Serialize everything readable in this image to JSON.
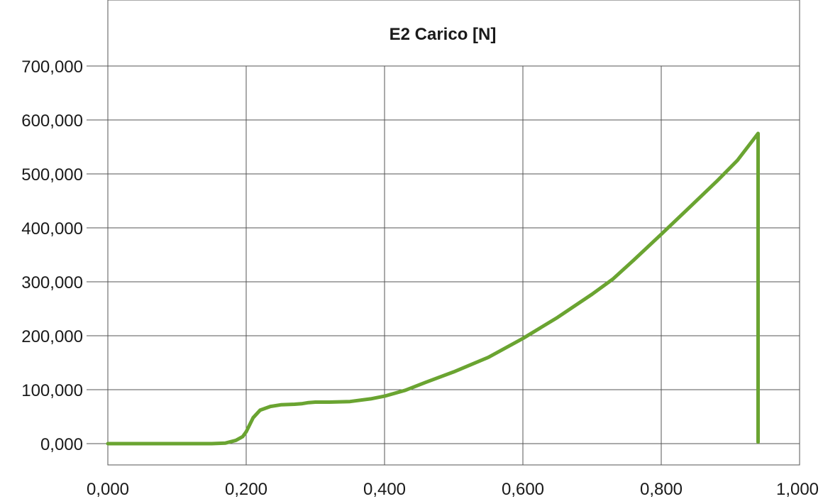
{
  "chart_data": {
    "type": "line",
    "title": "E2 Carico [N]",
    "xlabel": "",
    "ylabel": "",
    "xlim": [
      0,
      1
    ],
    "ylim": [
      -40,
      700
    ],
    "x_ticks": [
      "0,000",
      "0,200",
      "0,400",
      "0,600",
      "0,800",
      "1,000"
    ],
    "y_ticks": [
      "0,000",
      "100,000",
      "200,000",
      "300,000",
      "400,000",
      "500,000",
      "600,000",
      "700,000"
    ],
    "x_tick_values": [
      0,
      0.2,
      0.4,
      0.6,
      0.8,
      1.0
    ],
    "y_tick_values": [
      0,
      100,
      200,
      300,
      400,
      500,
      600,
      700
    ],
    "grid": true,
    "legend": "none",
    "series": [
      {
        "color": "#6aa431",
        "x": [
          0,
          0.05,
          0.1,
          0.15,
          0.17,
          0.185,
          0.195,
          0.2,
          0.205,
          0.21,
          0.22,
          0.235,
          0.25,
          0.27,
          0.28,
          0.29,
          0.3,
          0.32,
          0.35,
          0.38,
          0.4,
          0.43,
          0.46,
          0.5,
          0.55,
          0.6,
          0.65,
          0.7,
          0.73,
          0.76,
          0.8,
          0.84,
          0.88,
          0.91,
          0.94,
          0.94
        ],
        "y": [
          0,
          0,
          0,
          0,
          1,
          6,
          13,
          22,
          35,
          48,
          62,
          69,
          72,
          73,
          74,
          76,
          77,
          77,
          78,
          83,
          88,
          99,
          114,
          133,
          160,
          195,
          234,
          277,
          305,
          340,
          388,
          437,
          486,
          525,
          575,
          3
        ]
      }
    ]
  }
}
